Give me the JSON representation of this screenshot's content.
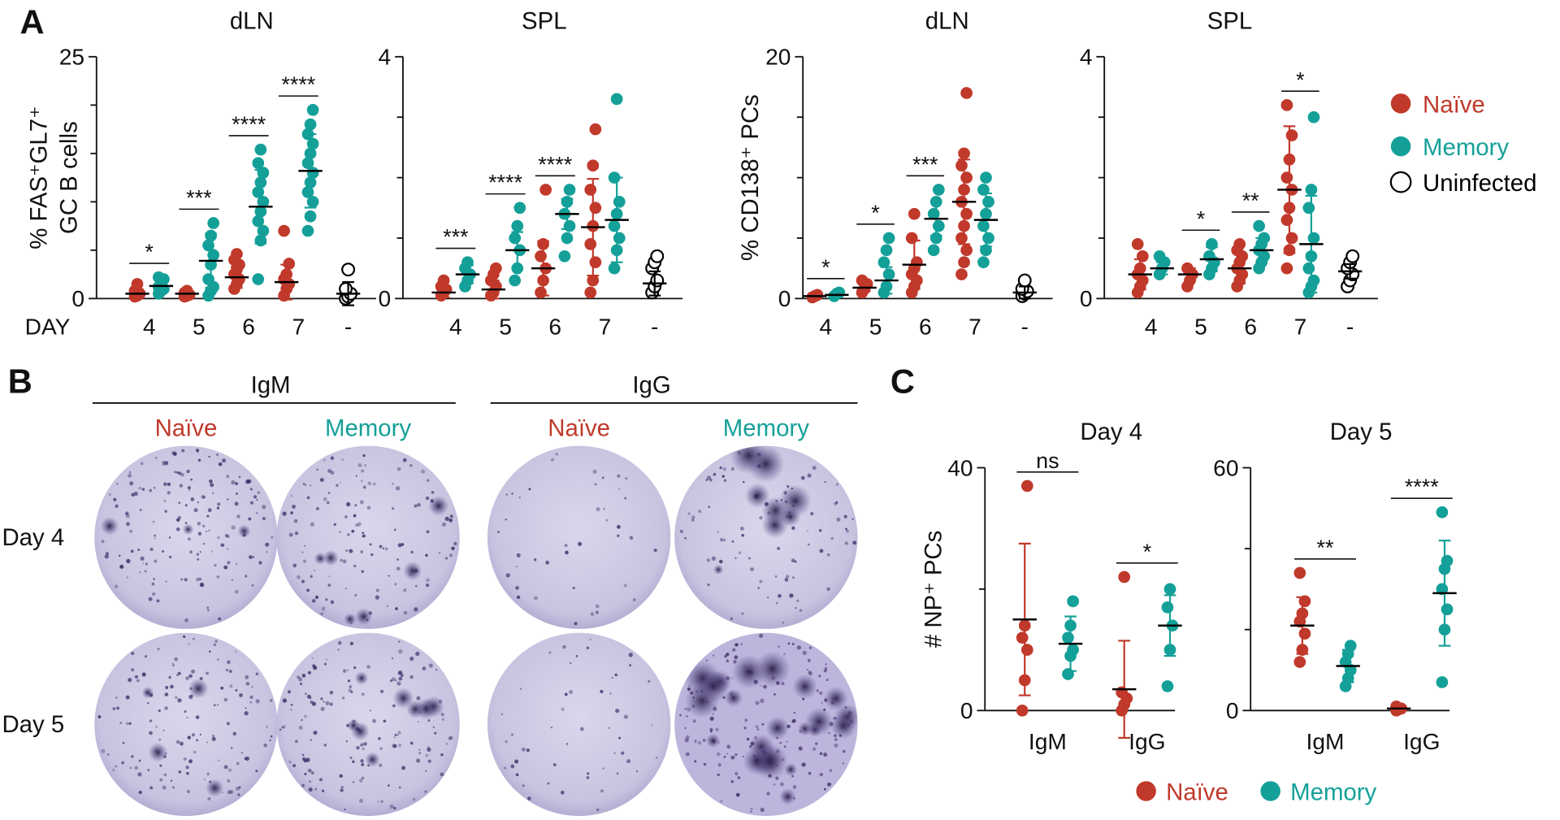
{
  "panels": [
    "A",
    "B",
    "C"
  ],
  "legends": [
    [
      {
        "name": "Naïve",
        "color": "#c0392b"
      },
      {
        "name": "Memory",
        "color": "#14a098"
      },
      {
        "name": "Uninfected",
        "color": "#000000",
        "open": true
      }
    ],
    [
      {
        "name": "Naïve",
        "color": "#c0392b"
      },
      {
        "name": "Memory",
        "color": "#14a098"
      }
    ]
  ],
  "elispot": {
    "groups": [
      "IgM",
      "IgG"
    ],
    "columns": [
      "Naïve",
      "Memory",
      "Naïve",
      "Memory"
    ],
    "column_colors": [
      "#c0392b",
      "#14a098",
      "#c0392b",
      "#14a098"
    ],
    "rows": [
      "Day 4",
      "Day 5"
    ]
  },
  "chart_data": [
    {
      "type": "dot",
      "title": "dLN",
      "ylabel": [
        "% FAS⁺GL7⁺",
        "GC B cells"
      ],
      "x_label": "DAY",
      "categories": [
        "4",
        "5",
        "6",
        "7",
        "-"
      ],
      "ylim": [
        0,
        25
      ],
      "yticks": [
        0,
        25
      ],
      "minor_yticks": [
        5,
        10,
        15,
        20
      ],
      "significance": [
        "*",
        "***",
        "****",
        "****",
        null
      ],
      "series": [
        {
          "color": "#c0392b",
          "points": [
            [
              0.2,
              0.3,
              0.5,
              0.8,
              1.5
            ],
            [
              0.2,
              0.3,
              0.4,
              0.6,
              0.8
            ],
            [
              1,
              1.5,
              2,
              2.5,
              3,
              3.5,
              4,
              4.6
            ],
            [
              0.3,
              1,
              1.5,
              2,
              2.5,
              3.6,
              7
            ],
            null
          ],
          "mean": [
            0.5,
            0.5,
            2.2,
            1.7,
            null
          ],
          "sd": [
            0.5,
            0.2,
            1.1,
            1.8,
            null
          ]
        },
        {
          "color": "#14a098",
          "points": [
            [
              0.5,
              0.8,
              1,
              1.2,
              1.5,
              2,
              2.2
            ],
            [
              0.3,
              0.8,
              1.2,
              2,
              3.5,
              4.5,
              5.5,
              6.5,
              7.8
            ],
            [
              2,
              6,
              7,
              8,
              9,
              10,
              11,
              12,
              13,
              14,
              15.4
            ],
            [
              7,
              8.5,
              10,
              11,
              12,
              13,
              14,
              15,
              16,
              17,
              18,
              19.5
            ],
            null
          ],
          "mean": [
            1.3,
            3.9,
            9.5,
            13.2,
            null
          ],
          "sd": [
            0.6,
            2.8,
            3.8,
            3.8,
            null
          ]
        },
        {
          "color": "#000000",
          "open": true,
          "points": [
            null,
            null,
            null,
            null,
            [
              0,
              0.2,
              0.5,
              1,
              3
            ]
          ],
          "mean": [
            null,
            null,
            null,
            null,
            0.5
          ],
          "sd": [
            null,
            null,
            null,
            null,
            1.2
          ]
        }
      ]
    },
    {
      "type": "dot",
      "title": "SPL",
      "categories": [
        "4",
        "5",
        "6",
        "7",
        "-"
      ],
      "ylim": [
        0,
        4
      ],
      "yticks": [
        0,
        4
      ],
      "minor_yticks": [
        1,
        2,
        3
      ],
      "significance": [
        "***",
        "****",
        "****",
        null,
        null
      ],
      "series": [
        {
          "color": "#c0392b",
          "points": [
            [
              0.05,
              0.1,
              0.15,
              0.2,
              0.3
            ],
            [
              0.05,
              0.1,
              0.2,
              0.3,
              0.4,
              0.5
            ],
            [
              0.1,
              0.3,
              0.5,
              0.7,
              0.9,
              1.8
            ],
            [
              0.1,
              0.3,
              0.6,
              0.9,
              1.2,
              1.5,
              1.8,
              2.2,
              2.8
            ],
            null
          ],
          "mean": [
            0.1,
            0.15,
            0.5,
            1.18,
            null
          ],
          "sd": [
            0.08,
            0.15,
            0.45,
            0.8,
            null
          ]
        },
        {
          "color": "#14a098",
          "points": [
            [
              0.2,
              0.3,
              0.4,
              0.5,
              0.6
            ],
            [
              0.3,
              0.5,
              0.8,
              1,
              1.2,
              1.5
            ],
            [
              0.7,
              1,
              1.2,
              1.4,
              1.6,
              1.8
            ],
            [
              0.5,
              0.8,
              1,
              1.2,
              1.4,
              1.6,
              2,
              3.3
            ],
            null
          ],
          "mean": [
            0.4,
            0.8,
            1.4,
            1.3,
            null
          ],
          "sd": [
            0.15,
            0.3,
            0.25,
            0.7,
            null
          ]
        },
        {
          "color": "#000000",
          "open": true,
          "points": [
            null,
            null,
            null,
            null,
            [
              0.1,
              0.2,
              0.3,
              0.5,
              0.6,
              0.7
            ]
          ],
          "mean": [
            null,
            null,
            null,
            null,
            0.25
          ],
          "sd": [
            null,
            null,
            null,
            null,
            0.2
          ]
        }
      ]
    },
    {
      "type": "dot",
      "title": "dLN",
      "ylabel": [
        "% CD138⁺ PCs"
      ],
      "categories": [
        "4",
        "5",
        "6",
        "7",
        "-"
      ],
      "ylim": [
        0,
        20
      ],
      "yticks": [
        0,
        20
      ],
      "minor_yticks": [
        5,
        10,
        15
      ],
      "significance": [
        "*",
        "*",
        "***",
        null,
        null
      ],
      "series": [
        {
          "color": "#c0392b",
          "points": [
            [
              0.1,
              0.2,
              0.3
            ],
            [
              0.5,
              0.8,
              1.2,
              1.5
            ],
            [
              0.5,
              1,
              1.5,
              2,
              2.5,
              3,
              5,
              7
            ],
            [
              2,
              3,
              4,
              5,
              6,
              7,
              8,
              9,
              10,
              11,
              12,
              17
            ],
            null
          ],
          "mean": [
            0.2,
            0.9,
            2.8,
            8,
            null
          ],
          "sd": [
            0.1,
            0.3,
            2,
            3.5,
            null
          ]
        },
        {
          "color": "#14a098",
          "points": [
            [
              0.2,
              0.4,
              0.5
            ],
            [
              0.5,
              1,
              2,
              3,
              4,
              5
            ],
            [
              4,
              5,
              6,
              7,
              8,
              9
            ],
            [
              3,
              4,
              5,
              6,
              7,
              8,
              9,
              10
            ],
            null
          ],
          "mean": [
            0.3,
            1.5,
            6.6,
            6.5,
            null
          ],
          "sd": [
            0.1,
            1.1,
            1.4,
            2.2,
            null
          ]
        },
        {
          "color": "#000000",
          "open": true,
          "points": [
            null,
            null,
            null,
            null,
            [
              0.2,
              0.4,
              0.6,
              0.8,
              1.5
            ]
          ],
          "mean": [
            null,
            null,
            null,
            null,
            0.5
          ],
          "sd": [
            null,
            null,
            null,
            null,
            0.5
          ]
        }
      ]
    },
    {
      "type": "dot",
      "title": "SPL",
      "categories": [
        "4",
        "5",
        "6",
        "7",
        "-"
      ],
      "ylim": [
        0,
        4
      ],
      "yticks": [
        0,
        4
      ],
      "minor_yticks": [
        1,
        2,
        3
      ],
      "significance": [
        null,
        "*",
        "**",
        "*",
        null
      ],
      "series": [
        {
          "color": "#c0392b",
          "points": [
            [
              0.1,
              0.2,
              0.3,
              0.4,
              0.5,
              0.7,
              0.9
            ],
            [
              0.2,
              0.3,
              0.4,
              0.5
            ],
            [
              0.2,
              0.3,
              0.4,
              0.5,
              0.6,
              0.7,
              0.8,
              0.9
            ],
            [
              0.5,
              0.8,
              1,
              1.3,
              1.5,
              1.8,
              2,
              2.3,
              2.7,
              3.2
            ],
            null
          ],
          "mean": [
            0.4,
            0.4,
            0.5,
            1.8,
            null
          ],
          "sd": [
            0.25,
            0.1,
            0.25,
            1.05,
            null
          ]
        },
        {
          "color": "#14a098",
          "points": [
            [
              0.4,
              0.5,
              0.6,
              0.7
            ],
            [
              0.4,
              0.5,
              0.6,
              0.7,
              0.9
            ],
            [
              0.5,
              0.6,
              0.7,
              0.8,
              0.9,
              1,
              1.2
            ],
            [
              0.1,
              0.2,
              0.3,
              0.5,
              0.7,
              1,
              1.5,
              1.8,
              3
            ],
            null
          ],
          "mean": [
            0.5,
            0.65,
            0.8,
            0.9,
            null
          ],
          "sd": [
            0.1,
            0.2,
            0.2,
            0.8,
            null
          ]
        },
        {
          "color": "#000000",
          "open": true,
          "points": [
            null,
            null,
            null,
            null,
            [
              0.2,
              0.3,
              0.4,
              0.5,
              0.6,
              0.7
            ]
          ],
          "mean": [
            null,
            null,
            null,
            null,
            0.45
          ],
          "sd": [
            null,
            null,
            null,
            null,
            0.12
          ]
        }
      ]
    },
    {
      "type": "dot",
      "title": "Day 4",
      "ylabel": [
        "# NP⁺ PCs"
      ],
      "categories": [
        "IgM",
        "IgG"
      ],
      "ylim": [
        0,
        40
      ],
      "yticks": [
        0,
        40
      ],
      "minor_yticks": [
        20
      ],
      "significance": [
        "ns",
        "*"
      ],
      "series": [
        {
          "color": "#c0392b",
          "points": [
            [
              0,
              5,
              10,
              12,
              14,
              37
            ],
            [
              0,
              1,
              2,
              3,
              22
            ]
          ],
          "mean": [
            15,
            3.5
          ],
          "sd": [
            12.5,
            8
          ]
        },
        {
          "color": "#14a098",
          "points": [
            [
              6,
              9,
              10,
              12,
              14,
              18
            ],
            [
              4,
              10,
              14,
              17,
              20
            ]
          ],
          "mean": [
            11,
            14
          ],
          "sd": [
            4.5,
            5
          ]
        }
      ]
    },
    {
      "type": "dot",
      "title": "Day 5",
      "categories": [
        "IgM",
        "IgG"
      ],
      "ylim": [
        0,
        60
      ],
      "yticks": [
        0,
        60
      ],
      "minor_yticks": [
        20,
        40
      ],
      "significance": [
        "**",
        "****"
      ],
      "series": [
        {
          "color": "#c0392b",
          "points": [
            [
              12,
              15,
              19,
              22,
              24,
              27,
              34
            ],
            [
              0,
              0.3,
              0.5,
              1
            ]
          ],
          "mean": [
            21,
            0.5
          ],
          "sd": [
            7,
            0.3
          ]
        },
        {
          "color": "#14a098",
          "points": [
            [
              6,
              8,
              10,
              12,
              14,
              16
            ],
            [
              7,
              20,
              25,
              30,
              35,
              37,
              49
            ]
          ],
          "mean": [
            11,
            29
          ],
          "sd": [
            4,
            13
          ]
        }
      ]
    }
  ]
}
